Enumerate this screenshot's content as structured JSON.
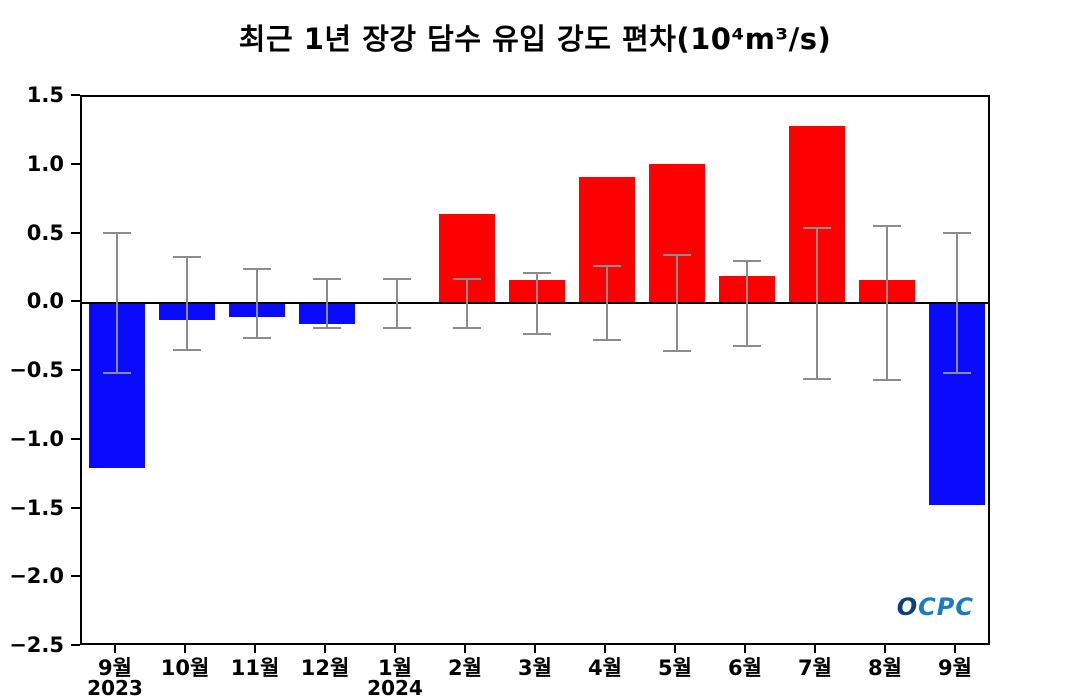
{
  "chart_data": {
    "type": "bar",
    "title": "최근 1년 장강 담수 유입 강도 편차(10⁴m³/s)",
    "categories": [
      "9월",
      "10월",
      "11월",
      "12월",
      "1월",
      "2월",
      "3월",
      "4월",
      "5월",
      "6월",
      "7월",
      "8월",
      "9월"
    ],
    "values": [
      -1.2,
      -0.12,
      -0.1,
      -0.15,
      0.0,
      0.65,
      0.17,
      0.92,
      1.01,
      0.2,
      1.29,
      0.17,
      -1.47
    ],
    "error": [
      0.51,
      0.34,
      0.25,
      0.18,
      0.18,
      0.18,
      0.22,
      0.27,
      0.35,
      0.31,
      0.55,
      0.56,
      0.51
    ],
    "year_labels": [
      {
        "index": 0,
        "label": "2023"
      },
      {
        "index": 4,
        "label": "2024"
      }
    ],
    "ylim": [
      -2.5,
      1.5
    ],
    "yticks": [
      1.5,
      1.0,
      0.5,
      0.0,
      -0.5,
      -1.0,
      -1.5,
      -2.0,
      -2.5
    ],
    "xlabel": "",
    "ylabel": "",
    "grid": false,
    "legend": null,
    "positive_color": "#ff0000",
    "negative_color": "#0a0aff",
    "error_color": "#8c8c8c",
    "zero_line_color": "#000000"
  },
  "logo": {
    "text": "OCPC"
  }
}
